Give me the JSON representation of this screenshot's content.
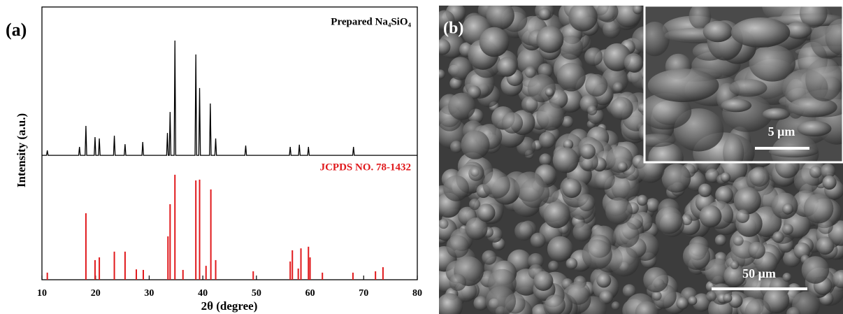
{
  "panel_a_label": "(a)",
  "panel_b_label": "(b)",
  "chart_data": {
    "type": "line",
    "x_label": "2θ (degree)",
    "y_label": "Intensity (a.u.)",
    "xlim": [
      10,
      80
    ],
    "xticks": [
      10,
      20,
      30,
      40,
      50,
      60,
      70,
      80
    ],
    "ylim": [
      0,
      100
    ],
    "series": [
      {
        "name": "Prepared Na₄SiO₄",
        "color": "#000000",
        "type": "line",
        "x": [
          10,
          10.85,
          11.0,
          11.15,
          16.85,
          17.0,
          17.15,
          18.05,
          18.2,
          18.35,
          19.75,
          19.9,
          20.05,
          20.55,
          20.7,
          20.85,
          23.35,
          23.5,
          23.65,
          25.35,
          25.5,
          25.65,
          28.65,
          28.8,
          28.95,
          33.25,
          33.4,
          33.55,
          33.75,
          33.9,
          34.05,
          34.65,
          34.8,
          34.95,
          38.55,
          38.7,
          38.85,
          39.25,
          39.4,
          39.55,
          41.25,
          41.4,
          41.55,
          42.25,
          42.4,
          42.55,
          47.85,
          48.0,
          48.15,
          56.15,
          56.3,
          56.45,
          57.85,
          58.0,
          58.15,
          59.55,
          59.7,
          59.85,
          67.95,
          68.1,
          68.25,
          80
        ],
        "values": [
          45.6,
          45.6,
          47.4,
          45.6,
          45.6,
          48.7,
          45.6,
          45.6,
          56.4,
          45.6,
          45.6,
          52.3,
          45.6,
          45.6,
          51.8,
          45.6,
          45.6,
          52.8,
          45.6,
          45.6,
          49.7,
          45.6,
          45.6,
          50.5,
          45.6,
          45.6,
          53.8,
          45.6,
          45.6,
          61.5,
          45.6,
          45.6,
          87.7,
          45.6,
          45.6,
          82.6,
          45.6,
          45.6,
          70.3,
          45.6,
          45.6,
          64.6,
          45.6,
          45.6,
          51.8,
          45.6,
          45.6,
          49.2,
          45.6,
          45.6,
          48.7,
          45.6,
          45.6,
          49.5,
          45.6,
          45.6,
          48.7,
          45.6,
          45.6,
          48.7,
          45.6,
          45.6
        ]
      },
      {
        "name": "JCPDS NO. 78-1432",
        "color": "#e0191c",
        "type": "bar",
        "x": [
          11.0,
          18.2,
          19.9,
          20.7,
          23.5,
          25.5,
          27.6,
          28.9,
          33.5,
          33.9,
          34.8,
          36.3,
          38.7,
          39.4,
          40.6,
          41.5,
          42.4,
          49.4,
          56.3,
          56.7,
          57.8,
          58.3,
          59.7,
          60.0,
          62.3,
          68.0,
          72.2,
          73.6
        ],
        "values": [
          2.6,
          24.4,
          7.2,
          8.2,
          10.3,
          10.3,
          3.8,
          3.6,
          15.9,
          27.7,
          38.5,
          3.6,
          36.4,
          36.7,
          5.1,
          33.1,
          7.2,
          3.1,
          6.7,
          10.8,
          4.1,
          11.5,
          12.1,
          8.2,
          2.6,
          2.6,
          3.1,
          4.6
        ]
      }
    ]
  },
  "sem": {
    "scale_bar_main": "50 μm",
    "scale_bar_inset": "5 μm"
  }
}
